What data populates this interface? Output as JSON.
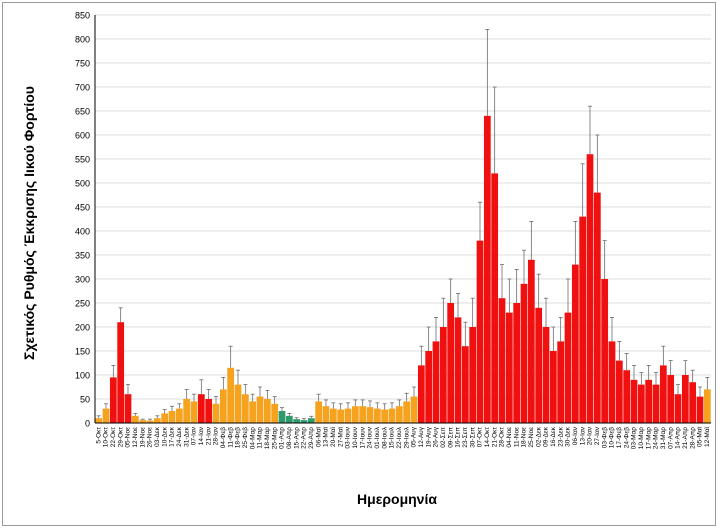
{
  "chart_data": {
    "type": "bar",
    "title": "",
    "xlabel": "Ημερομηνία",
    "ylabel": "Σχετικός Ρυθμός Έκκρισης Ιικού Φορτίου",
    "ylim": [
      0,
      850
    ],
    "yticks": [
      0,
      50,
      100,
      150,
      200,
      250,
      300,
      350,
      400,
      450,
      500,
      550,
      600,
      650,
      700,
      750,
      800,
      850
    ],
    "grid": true,
    "legend": "none",
    "error_bars": true,
    "colors": {
      "red": "#f01010",
      "orange": "#f5a21f",
      "green": "#2e9a6b",
      "errorbar": "#6b6b6b"
    },
    "categories": [
      "5-Οκτ",
      "10-Οκτ",
      "22-Οκτ",
      "29-Οκτ",
      "05-Νοε",
      "12-Νοε",
      "19-Νοε",
      "26-Νοε",
      "03-Δεκ",
      "10-Δεκ",
      "17-Δεκ",
      "24-Δεκ",
      "31-Δεκ",
      "07-Ιαν",
      "14-Ιαν",
      "21-Ιαν",
      "28-Ιαν",
      "04-Φεβ",
      "11-Φεβ",
      "18-Φεβ",
      "25-Φεβ",
      "04-Μαρ",
      "11-Μαρ",
      "18-Μαρ",
      "25-Μαρ",
      "01-Απρ",
      "08-Απρ",
      "15-Απρ",
      "22-Απρ",
      "29-Απρ",
      "06-Μαϊ",
      "13-Μαϊ",
      "20-Μαϊ",
      "27-Μαϊ",
      "03-Ιουν",
      "10-Ιουν",
      "17-Ιουν",
      "24-Ιουν",
      "01-Ιουλ",
      "08-Ιουλ",
      "15-Ιουλ",
      "22-Ιουλ",
      "29-Ιουλ",
      "05-Αυγ",
      "12-Αυγ",
      "19-Αυγ",
      "26-Αυγ",
      "02-Σεπ",
      "09-Σεπ",
      "16-Σεπ",
      "23-Σεπ",
      "30-Σεπ",
      "07-Οκτ",
      "14-Οκτ",
      "21-Οκτ",
      "28-Οκτ",
      "04-Νοε",
      "11-Νοε",
      "18-Νοε",
      "25-Νοε",
      "02-Δεκ",
      "09-Δεκ",
      "16-Δεκ",
      "23-Δεκ",
      "30-Δεκ",
      "06-Ιαν",
      "13-Ιαν",
      "20-Ιαν",
      "27-Ιαν",
      "03-Φεβ",
      "10-Φεβ",
      "17-Φεβ",
      "24-Φεβ",
      "03-Μαρ",
      "10-Μαρ",
      "17-Μαρ",
      "24-Μαρ",
      "31-Μαρ",
      "07-Απρ",
      "14-Απρ",
      "21-Απρ",
      "28-Απρ",
      "05-Μαϊ",
      "12-Μαϊ"
    ],
    "values": [
      10,
      30,
      95,
      210,
      60,
      15,
      6,
      5,
      10,
      20,
      25,
      30,
      50,
      45,
      60,
      50,
      40,
      70,
      115,
      80,
      60,
      45,
      55,
      50,
      40,
      25,
      15,
      8,
      6,
      10,
      45,
      35,
      30,
      28,
      30,
      35,
      35,
      33,
      30,
      28,
      30,
      35,
      45,
      55,
      120,
      150,
      170,
      200,
      250,
      220,
      160,
      200,
      380,
      640,
      520,
      260,
      230,
      250,
      290,
      340,
      240,
      200,
      150,
      170,
      230,
      330,
      430,
      560,
      480,
      300,
      170,
      130,
      110,
      90,
      80,
      90,
      80,
      120,
      100,
      60,
      100,
      85,
      55,
      70
    ],
    "colors_per_bar": [
      "orange",
      "orange",
      "red",
      "red",
      "red",
      "orange",
      "orange",
      "orange",
      "orange",
      "orange",
      "orange",
      "orange",
      "orange",
      "orange",
      "red",
      "red",
      "orange",
      "orange",
      "orange",
      "orange",
      "orange",
      "orange",
      "orange",
      "orange",
      "orange",
      "green",
      "green",
      "green",
      "green",
      "green",
      "orange",
      "orange",
      "orange",
      "orange",
      "orange",
      "orange",
      "orange",
      "orange",
      "orange",
      "orange",
      "orange",
      "orange",
      "orange",
      "orange",
      "red",
      "red",
      "red",
      "red",
      "red",
      "red",
      "red",
      "red",
      "red",
      "red",
      "red",
      "red",
      "red",
      "red",
      "red",
      "red",
      "red",
      "red",
      "red",
      "red",
      "red",
      "red",
      "red",
      "red",
      "red",
      "red",
      "red",
      "red",
      "red",
      "red",
      "red",
      "red",
      "red",
      "red",
      "red",
      "red",
      "red",
      "red",
      "red",
      "orange"
    ],
    "error_upper": [
      15,
      40,
      120,
      240,
      80,
      20,
      8,
      8,
      15,
      28,
      35,
      40,
      70,
      60,
      90,
      70,
      55,
      95,
      160,
      110,
      80,
      60,
      75,
      68,
      55,
      32,
      20,
      11,
      9,
      14,
      60,
      48,
      42,
      40,
      42,
      48,
      48,
      46,
      42,
      40,
      42,
      48,
      62,
      75,
      160,
      200,
      220,
      260,
      300,
      270,
      210,
      260,
      460,
      820,
      700,
      330,
      300,
      320,
      360,
      420,
      310,
      260,
      200,
      220,
      300,
      420,
      540,
      660,
      600,
      380,
      220,
      170,
      145,
      120,
      105,
      120,
      105,
      160,
      130,
      80,
      130,
      110,
      75,
      95
    ]
  }
}
